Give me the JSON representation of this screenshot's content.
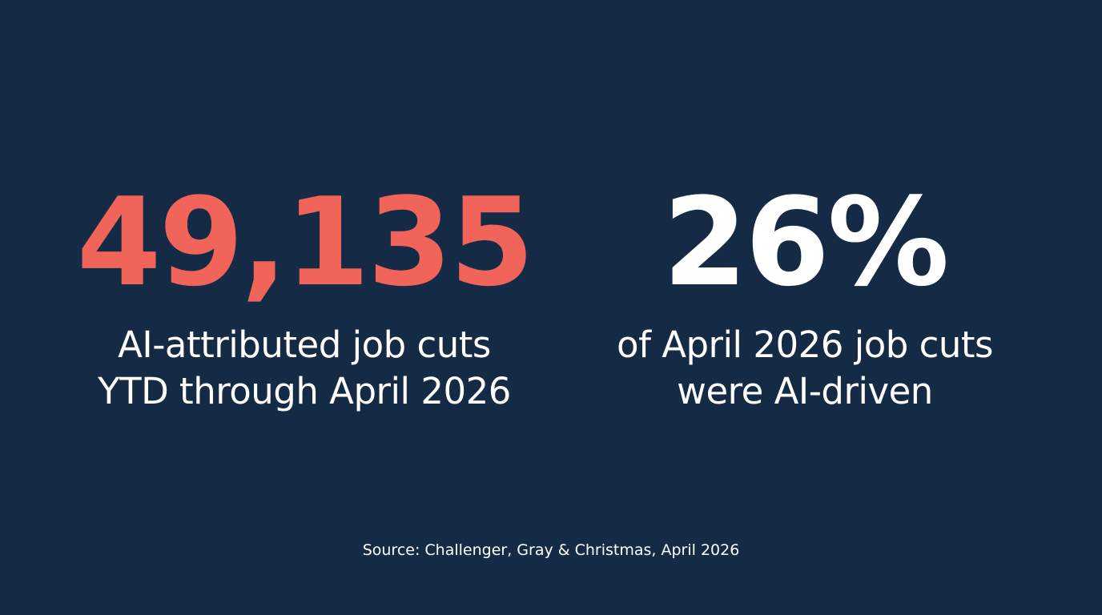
{
  "colors": {
    "background": "#152a45",
    "accent": "#f0645a",
    "text": "#ffffff"
  },
  "stats": [
    {
      "value": "49,135",
      "caption_lines": [
        "AI-attributed job cuts",
        "YTD through April 2026"
      ]
    },
    {
      "value": "26%",
      "caption_lines": [
        "of April 2026 job cuts",
        "were AI-driven"
      ]
    }
  ],
  "source": "Source: Challenger, Gray & Christmas, April 2026"
}
